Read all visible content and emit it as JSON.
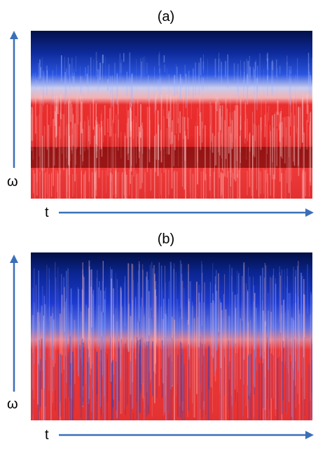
{
  "panels": [
    {
      "label": "(a)",
      "x_axis_label": "t",
      "y_axis_label": "ω",
      "colors": {
        "high": "#8b0f0f",
        "mid": "#ef2b2b",
        "transition": "#d8d8f0",
        "low": "#1b3fd6",
        "lowest": "#04104a"
      }
    },
    {
      "label": "(b)",
      "x_axis_label": "t",
      "y_axis_label": "ω",
      "colors": {
        "high": "#e23030",
        "mid": "#f04040",
        "transition": "#d0d0ee",
        "low": "#1c3ad0",
        "lowest": "#030f44"
      }
    }
  ],
  "arrow_color": "#3a6fb8"
}
